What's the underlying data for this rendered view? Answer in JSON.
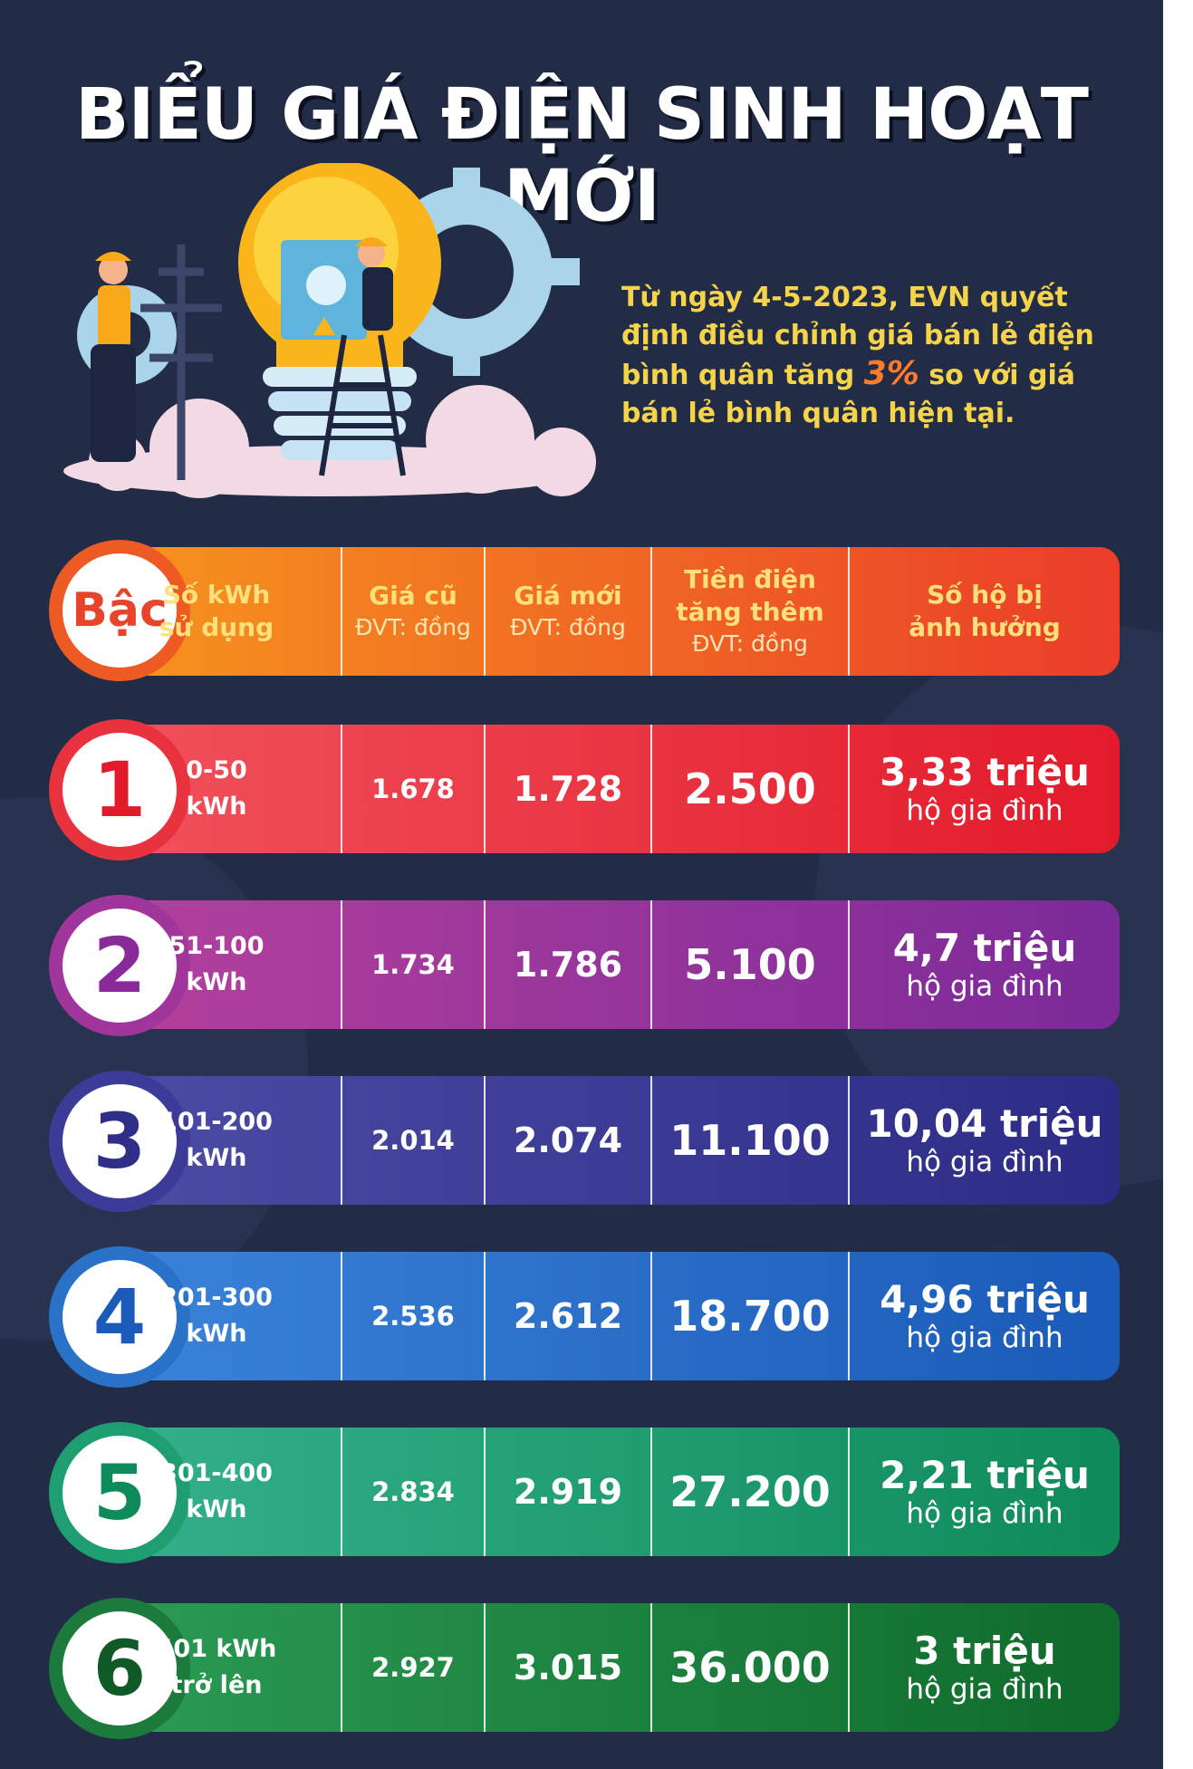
{
  "title": "BIỂU GIÁ ĐIỆN SINH HOẠT MỚI",
  "intro": {
    "before": "Từ ngày 4-5-2023, EVN quyết định điều chỉnh giá bán lẻ điện bình quân tăng ",
    "highlight": "3%",
    "after": " so với giá bán lẻ bình quân hiện tại."
  },
  "header": {
    "tier": "Bậc",
    "kwh_line1": "Số kWh",
    "kwh_line2": "sử dụng",
    "old_price": "Giá cũ",
    "new_price": "Giá mới",
    "unit": "ĐVT: đồng",
    "increase_line1": "Tiền điện",
    "increase_line2": "tăng thêm",
    "households_line1": "Số hộ bị",
    "households_line2": "ảnh hưởng"
  },
  "rows": [
    {
      "tier": "1",
      "kwh_line1": "0-50",
      "kwh_line2": "kWh",
      "old": "1.678",
      "new": "1.728",
      "increase": "2.500",
      "households": "3,33 triệu",
      "households_unit": "hộ gia đình"
    },
    {
      "tier": "2",
      "kwh_line1": "51-100",
      "kwh_line2": "kWh",
      "old": "1.734",
      "new": "1.786",
      "increase": "5.100",
      "households": "4,7 triệu",
      "households_unit": "hộ gia đình"
    },
    {
      "tier": "3",
      "kwh_line1": "101-200",
      "kwh_line2": "kWh",
      "old": "2.014",
      "new": "2.074",
      "increase": "11.100",
      "households": "10,04 triệu",
      "households_unit": "hộ gia đình"
    },
    {
      "tier": "4",
      "kwh_line1": "201-300",
      "kwh_line2": "kWh",
      "old": "2.536",
      "new": "2.612",
      "increase": "18.700",
      "households": "4,96 triệu",
      "households_unit": "hộ gia đình"
    },
    {
      "tier": "5",
      "kwh_line1": "301-400",
      "kwh_line2": "kWh",
      "old": "2.834",
      "new": "2.919",
      "increase": "27.200",
      "households": "2,21 triệu",
      "households_unit": "hộ gia đình"
    },
    {
      "tier": "6",
      "kwh_line1": "401 kWh",
      "kwh_line2": "trở lên",
      "old": "2.927",
      "new": "3.015",
      "increase": "36.000",
      "households": "3 triệu",
      "households_unit": "hộ gia đình"
    }
  ],
  "colors": {
    "background": "#222c47",
    "title": "#ffffff",
    "intro_text": "#f6d44a",
    "intro_highlight": "#ff7a2a",
    "header": [
      "#f6921e",
      "#ea3d2a"
    ],
    "tier_1": [
      "#f0505b",
      "#e31a2a"
    ],
    "tier_2": [
      "#b3409c",
      "#7b2a9a"
    ],
    "tier_3": [
      "#4b4ba4",
      "#2c2b86"
    ],
    "tier_4": [
      "#3a82d8",
      "#1a5ab8"
    ],
    "tier_5": [
      "#33b08a",
      "#0f8a5a"
    ],
    "tier_6": [
      "#2a9a52",
      "#0f6a2c"
    ]
  },
  "icons": [
    "lightbulb-icon",
    "gear-icon",
    "power-pylon-icon",
    "worker-icon",
    "ladder-icon",
    "electrical-box-icon",
    "cloud-icon"
  ]
}
